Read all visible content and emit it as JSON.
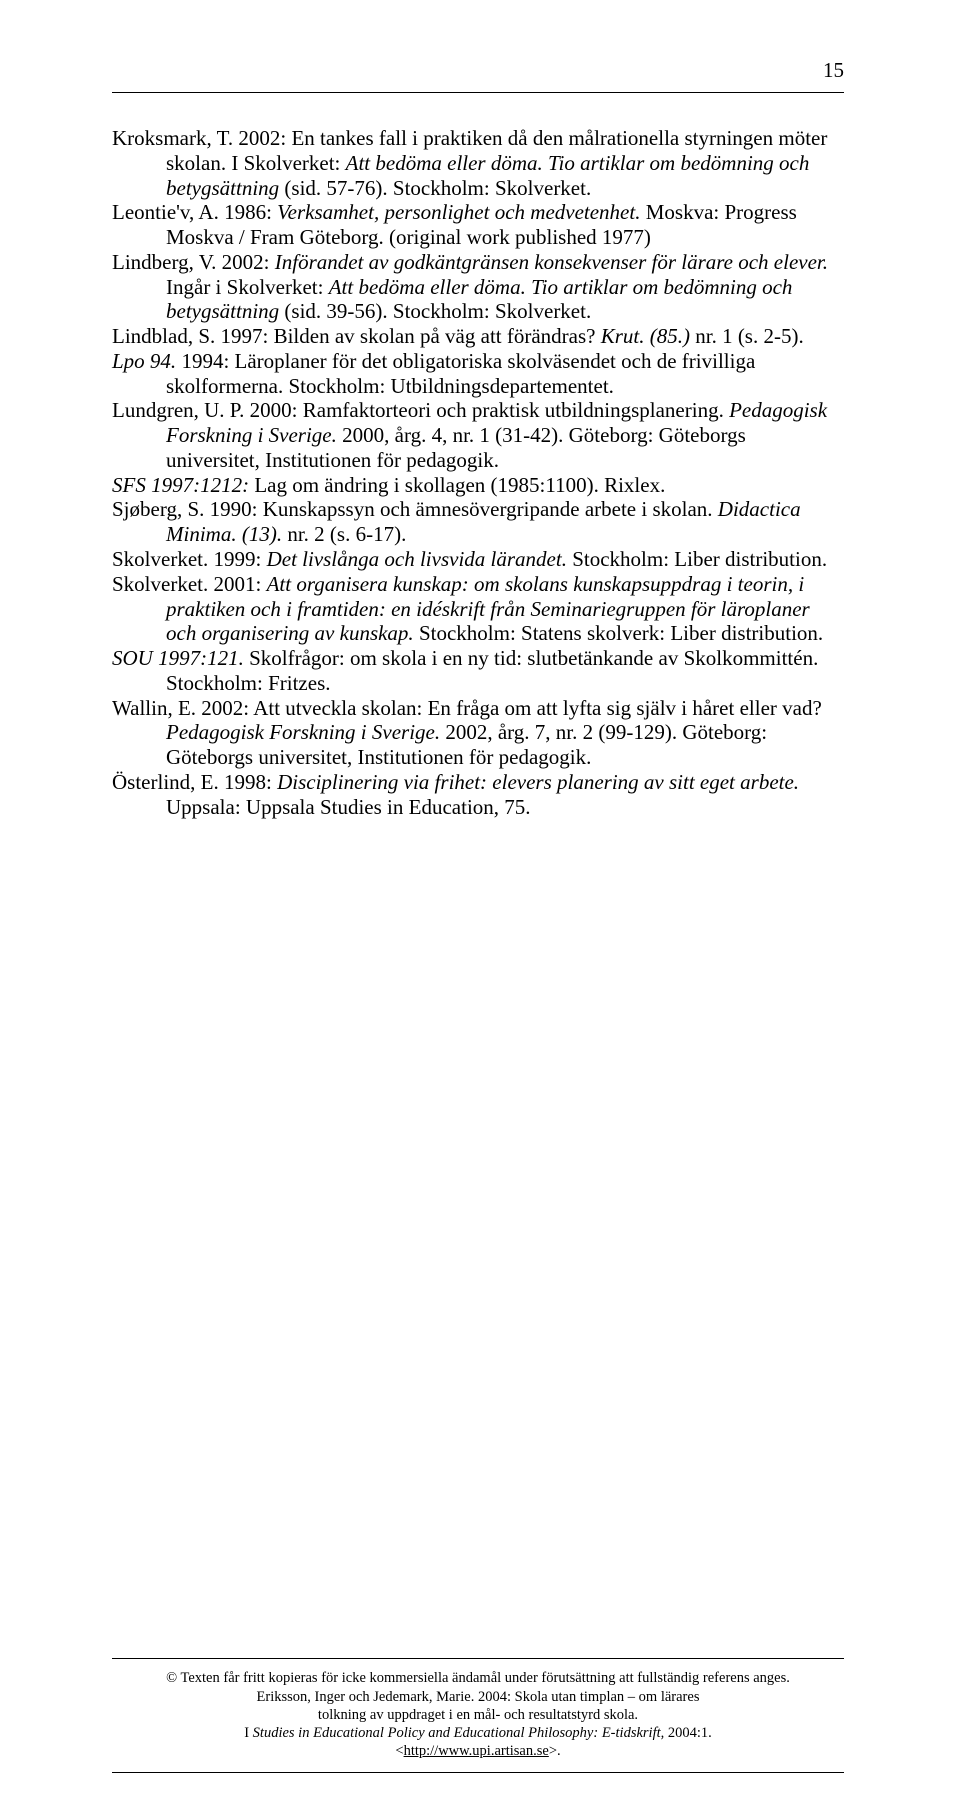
{
  "page_number": "15",
  "refs": [
    {
      "html": "Kroksmark, T. 2002: En tankes fall i praktiken då den målrationella styrningen möter skolan. I Skolverket: <span class=\"i\">Att bedöma eller döma. Tio artiklar om bedömning och betygsättning</span> (sid. 57-76). Stockholm: Skolverket."
    },
    {
      "html": "Leontie'v, A. 1986: <span class=\"i\">Verksamhet, personlighet och medvetenhet.</span> Moskva: Progress Moskva / Fram Göteborg. (original work published 1977)"
    },
    {
      "html": "Lindberg, V. 2002: <span class=\"i\">Införandet av godkäntgränsen konsekvenser för lärare och elever.</span> Ingår i Skolverket: <span class=\"i\">Att bedöma eller döma. Tio artiklar om bedömning och betygsättning</span> (sid. 39-56). Stockholm: Skolverket."
    },
    {
      "html": "Lindblad, S. 1997: Bilden av skolan på väg att förändras? <span class=\"i\">Krut. (85.) </span>nr. 1 (s. 2-5)."
    },
    {
      "html": "<span class=\"i\">Lpo 94.</span> 1994: Läroplaner för det obligatoriska skolväsendet och de frivilliga skolformerna. Stockholm: Utbildningsdepartementet."
    },
    {
      "html": "Lundgren, U. P. 2000: Ramfaktorteori och praktisk utbildningsplanering. <span class=\"i\">Pedagogisk Forskning i Sverige.</span> 2000, årg. 4, nr. 1 (31-42). Göteborg: Göteborgs universitet, Institutionen för pedagogik."
    },
    {
      "html": "<span class=\"i\">SFS 1997:1212:</span>  Lag om ändring i skollagen (1985:1100). Rixlex."
    },
    {
      "html": "Sjøberg, S. 1990: Kunskapssyn och ämnesövergripande arbete i skolan. <span class=\"i\">Didactica Minima. (13).</span> nr. 2 (s. 6-17)."
    },
    {
      "html": "Skolverket. 1999: <span class=\"i\">Det livslånga och livsvida lärandet.</span> Stockholm: Liber distribution."
    },
    {
      "html": "Skolverket. 2001: <span class=\"i\">Att organisera kunskap: om skolans kunskapsuppdrag i teorin, i praktiken och i framtiden: en idéskrift från Seminariegruppen för läroplaner och organisering av kunskap.</span> Stockholm: Statens skolverk: Liber distribution."
    },
    {
      "html": "<span class=\"i\">SOU 1997:121.</span> Skolfrågor: om skola i en ny tid: slutbetänkande av Skolkommittén. Stockholm: Fritzes."
    },
    {
      "html": "Wallin, E. 2002: Att utveckla skolan: En fråga om att lyfta sig själv i håret eller vad? <span class=\"i\">Pedagogisk Forskning i Sverige.</span> 2002, årg. 7, nr. 2 (99-129). Göteborg: Göteborgs universitet, Institutionen för pedagogik."
    },
    {
      "html": "Österlind, E. 1998: <span class=\"i\">Disciplinering via frihet: elevers planering av sitt eget arbete.</span> Uppsala: Uppsala Studies in Education, 75."
    }
  ],
  "footer": {
    "line1": "© Texten får fritt kopieras för icke kommersiella ändamål under förutsättning att fullständig referens anges.",
    "line2": "Eriksson, Inger och Jedemark, Marie. 2004: Skola utan timplan – om lärares",
    "line3": "tolkning av uppdraget i en mål- och resultatstyrd skola.",
    "line4_prefix": "I ",
    "line4_italic": "Studies in Educational Policy and Educational Philosophy: E-tidskrift,",
    "line4_suffix": " 2004:1.",
    "line5_prefix": "<",
    "line5_link": "http://www.upi.artisan.se",
    "line5_suffix": ">."
  }
}
